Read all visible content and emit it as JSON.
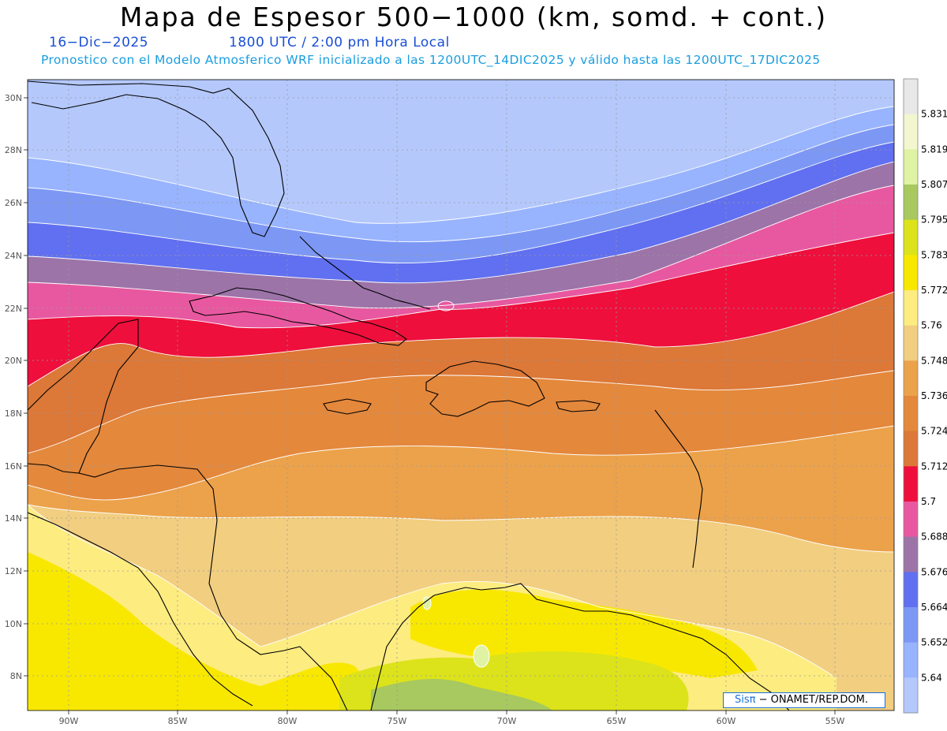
{
  "title": "Mapa de Espesor 500−1000 (km, somd. + cont.)",
  "date": "16−Dic−2025",
  "time": "1800 UTC / 2:00 pm Hora Local",
  "description": "Pronostico con el Modelo Atmosferico WRF inicializado a las 1200UTC_14DIC2025 y válido hasta las  1200UTC_17DIC2025",
  "credit": {
    "brand": "Sisπ",
    "text": " −  ONAMET/REP.DOM."
  },
  "axes": {
    "lon_labels": [
      "90W",
      "85W",
      "80W",
      "75W",
      "70W",
      "65W",
      "60W",
      "55W"
    ],
    "lat_labels": [
      "30N",
      "28N",
      "26N",
      "24N",
      "22N",
      "20N",
      "18N",
      "16N",
      "14N",
      "12N",
      "10N",
      "8N"
    ]
  },
  "colorbar": {
    "levels": [
      "5.831",
      "5.819",
      "5.807",
      "5.795",
      "5.783",
      "5.772",
      "5.76",
      "5.748",
      "5.736",
      "5.724",
      "5.712",
      "5.7",
      "5.688",
      "5.676",
      "5.664",
      "5.652",
      "5.64"
    ],
    "colors": [
      "#e8e8e8",
      "#f2f7d0",
      "#e0f2a4",
      "#a8c860",
      "#dce31a",
      "#f8e800",
      "#fdec80",
      "#f2ce80",
      "#eca24a",
      "#e4883c",
      "#dc7838",
      "#ee0f3c",
      "#e858a0",
      "#9c74a8",
      "#6170f0",
      "#7d98f4",
      "#98b4ff",
      "#b4c8fc"
    ]
  },
  "colors": {
    "grid": "#9a9a9a",
    "coast": "#000000",
    "contour": "#ffffff"
  }
}
